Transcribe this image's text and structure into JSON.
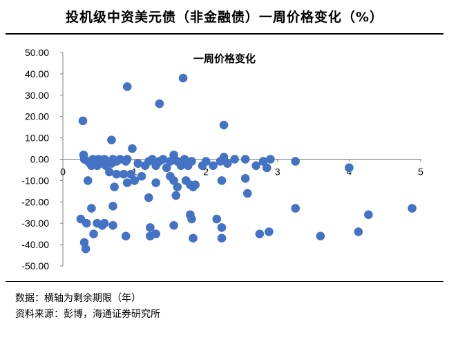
{
  "header": {
    "title": "投机级中资美元债（非金融债）一周价格变化（%）"
  },
  "footer": {
    "note": "数据：横轴为剩余期限（年）",
    "source": "资料来源：彭博，海通证券研究所"
  },
  "chart_data": {
    "type": "scatter",
    "title": "一周价格变化",
    "xlabel": "",
    "ylabel": "",
    "xlim": [
      0,
      5
    ],
    "ylim": [
      -50,
      50
    ],
    "x_ticks": [
      0,
      1,
      2,
      3,
      4,
      5
    ],
    "y_ticks": [
      "50.00",
      "40.00",
      "30.00",
      "20.00",
      "10.00",
      "0.00",
      "-10.00",
      "-20.00",
      "-30.00",
      "-40.00",
      "-50.00"
    ],
    "grid": false,
    "legend": "none",
    "marker_color": "#4472C4",
    "points": [
      {
        "x": 0.28,
        "y": 18
      },
      {
        "x": 0.29,
        "y": 2
      },
      {
        "x": 0.3,
        "y": 0
      },
      {
        "x": 0.35,
        "y": -1
      },
      {
        "x": 0.38,
        "y": -2
      },
      {
        "x": 0.4,
        "y": -3
      },
      {
        "x": 0.42,
        "y": 0
      },
      {
        "x": 0.45,
        "y": -1
      },
      {
        "x": 0.48,
        "y": -3
      },
      {
        "x": 0.5,
        "y": 0
      },
      {
        "x": 0.52,
        "y": -2
      },
      {
        "x": 0.55,
        "y": -1
      },
      {
        "x": 0.58,
        "y": 0
      },
      {
        "x": 0.6,
        "y": -3
      },
      {
        "x": 0.62,
        "y": -1
      },
      {
        "x": 0.65,
        "y": -6
      },
      {
        "x": 0.68,
        "y": -2
      },
      {
        "x": 0.7,
        "y": 0
      },
      {
        "x": 0.75,
        "y": -1
      },
      {
        "x": 0.8,
        "y": 0
      },
      {
        "x": 0.85,
        "y": -7
      },
      {
        "x": 0.88,
        "y": -1
      },
      {
        "x": 0.9,
        "y": 0
      },
      {
        "x": 0.95,
        "y": -7
      },
      {
        "x": 1.0,
        "y": -10
      },
      {
        "x": 1.05,
        "y": -2
      },
      {
        "x": 1.1,
        "y": -8
      },
      {
        "x": 1.15,
        "y": -3
      },
      {
        "x": 1.2,
        "y": -1
      },
      {
        "x": 1.25,
        "y": 0
      },
      {
        "x": 1.3,
        "y": -3
      },
      {
        "x": 1.35,
        "y": -1
      },
      {
        "x": 1.4,
        "y": 0
      },
      {
        "x": 1.45,
        "y": -4
      },
      {
        "x": 1.5,
        "y": -1
      },
      {
        "x": 1.55,
        "y": 2
      },
      {
        "x": 1.6,
        "y": -1
      },
      {
        "x": 1.65,
        "y": -3
      },
      {
        "x": 1.7,
        "y": 0
      },
      {
        "x": 1.75,
        "y": -3
      },
      {
        "x": 1.8,
        "y": -1
      },
      {
        "x": 1.85,
        "y": -12
      },
      {
        "x": 1.95,
        "y": -3
      },
      {
        "x": 2.0,
        "y": -1
      },
      {
        "x": 2.1,
        "y": -3
      },
      {
        "x": 2.2,
        "y": -1
      },
      {
        "x": 2.25,
        "y": 1
      },
      {
        "x": 2.3,
        "y": -2
      },
      {
        "x": 2.4,
        "y": 0
      },
      {
        "x": 2.55,
        "y": 0
      },
      {
        "x": 2.7,
        "y": -3
      },
      {
        "x": 2.8,
        "y": -1
      },
      {
        "x": 2.9,
        "y": 0
      },
      {
        "x": 3.25,
        "y": -1
      },
      {
        "x": 0.35,
        "y": -10
      },
      {
        "x": 0.68,
        "y": 9
      },
      {
        "x": 0.72,
        "y": -13
      },
      {
        "x": 0.75,
        "y": -7
      },
      {
        "x": 0.9,
        "y": -11
      },
      {
        "x": 0.97,
        "y": 5
      },
      {
        "x": 1.0,
        "y": -10
      },
      {
        "x": 1.3,
        "y": -11
      },
      {
        "x": 1.5,
        "y": -8
      },
      {
        "x": 1.55,
        "y": -10
      },
      {
        "x": 1.6,
        "y": -13
      },
      {
        "x": 1.72,
        "y": -10
      },
      {
        "x": 1.78,
        "y": -12
      },
      {
        "x": 1.82,
        "y": -13
      },
      {
        "x": 2.22,
        "y": -10
      },
      {
        "x": 2.25,
        "y": 16
      },
      {
        "x": 2.55,
        "y": -9
      },
      {
        "x": 2.58,
        "y": -16
      },
      {
        "x": 2.85,
        "y": -4
      },
      {
        "x": 0.9,
        "y": 34
      },
      {
        "x": 1.35,
        "y": 26
      },
      {
        "x": 1.68,
        "y": 38
      },
      {
        "x": 1.58,
        "y": -17
      },
      {
        "x": 1.2,
        "y": -18
      },
      {
        "x": 0.4,
        "y": -23
      },
      {
        "x": 0.7,
        "y": -22
      },
      {
        "x": 0.25,
        "y": -28
      },
      {
        "x": 0.33,
        "y": -30
      },
      {
        "x": 0.48,
        "y": -30
      },
      {
        "x": 0.55,
        "y": -31
      },
      {
        "x": 0.58,
        "y": -30
      },
      {
        "x": 0.7,
        "y": -31
      },
      {
        "x": 1.22,
        "y": -32
      },
      {
        "x": 1.3,
        "y": -35
      },
      {
        "x": 1.22,
        "y": -36
      },
      {
        "x": 1.55,
        "y": -31
      },
      {
        "x": 1.78,
        "y": -26
      },
      {
        "x": 1.8,
        "y": -28
      },
      {
        "x": 1.82,
        "y": -37
      },
      {
        "x": 2.15,
        "y": -28
      },
      {
        "x": 2.22,
        "y": -32
      },
      {
        "x": 2.22,
        "y": -37
      },
      {
        "x": 0.88,
        "y": -36
      },
      {
        "x": 0.43,
        "y": -35
      },
      {
        "x": 0.3,
        "y": -39
      },
      {
        "x": 0.32,
        "y": -42
      },
      {
        "x": 2.75,
        "y": -35
      },
      {
        "x": 2.88,
        "y": -34
      },
      {
        "x": 3.25,
        "y": -23
      },
      {
        "x": 3.6,
        "y": -36
      },
      {
        "x": 4.0,
        "y": -4
      },
      {
        "x": 4.13,
        "y": -34
      },
      {
        "x": 4.27,
        "y": -26
      },
      {
        "x": 4.88,
        "y": -23
      }
    ]
  }
}
